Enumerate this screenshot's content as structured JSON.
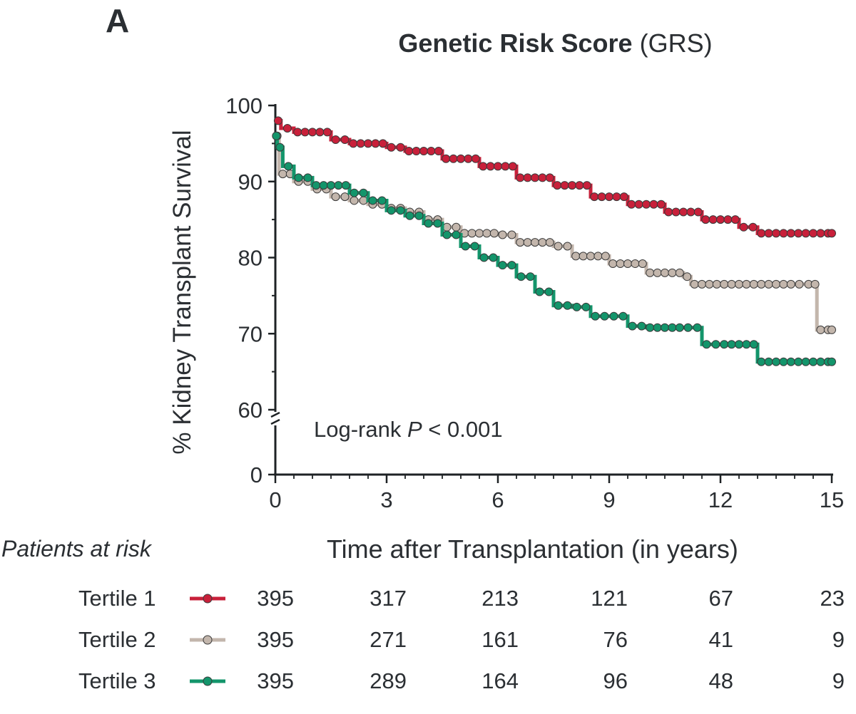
{
  "panel_letter": "A",
  "title": {
    "bold": "Genetic Risk Score",
    "normal": "(GRS)"
  },
  "logrank": {
    "prefix": "Log-rank ",
    "p": "P",
    "suffix": " < 0.001"
  },
  "risk_table": {
    "title": "Patients at risk",
    "rows": [
      {
        "label": "Tertile 1",
        "values": [
          "395",
          "317",
          "213",
          "121",
          "67",
          "23"
        ]
      },
      {
        "label": "Tertile 2",
        "values": [
          "395",
          "271",
          "161",
          "76",
          "41",
          "9"
        ]
      },
      {
        "label": "Tertile 3",
        "values": [
          "395",
          "289",
          "164",
          "96",
          "48",
          "9"
        ]
      }
    ]
  },
  "chart_data": {
    "type": "line",
    "subtype": "kaplan-meier step curves with censor markers",
    "title": "Genetic Risk Score (GRS)",
    "xlabel": "Time after Transplantation (in years)",
    "ylabel": "% Kidney Transplant Survival",
    "xlim": [
      0,
      15
    ],
    "x_ticks": [
      "0",
      "3",
      "6",
      "9",
      "12",
      "15"
    ],
    "y_ticks": [
      "0",
      "60",
      "70",
      "80",
      "90",
      "100"
    ],
    "y_axis_break": [
      0,
      60
    ],
    "grid": false,
    "series": [
      {
        "name": "Tertile 1",
        "color": "#c8203a",
        "x": [
          0,
          0.15,
          0.5,
          1.5,
          2,
          3,
          3.5,
          4.5,
          5.5,
          6.5,
          7.5,
          8.5,
          9.5,
          10.5,
          11.5,
          12.5,
          13,
          14,
          15
        ],
        "y": [
          98,
          97,
          96.5,
          95.5,
          95,
          94.5,
          94,
          93,
          92,
          90.5,
          89.5,
          88,
          87,
          86,
          85,
          84,
          83.2,
          83.2,
          83.2
        ]
      },
      {
        "name": "Tertile 2",
        "color": "#c3b6ac",
        "x": [
          0,
          0.1,
          0.5,
          1,
          1.5,
          2,
          2.5,
          3,
          3.5,
          4,
          4.5,
          5,
          6,
          6.5,
          7.5,
          8,
          9,
          10,
          11,
          11.2,
          12,
          13,
          14,
          14.5,
          14.6,
          15
        ],
        "y": [
          96,
          91,
          90,
          89,
          88,
          87.5,
          87,
          86.5,
          86,
          85,
          84,
          83.2,
          83,
          82,
          81.5,
          80.2,
          79.2,
          78,
          77.5,
          76.5,
          76.5,
          76.5,
          76.5,
          76.5,
          70.5,
          70.5
        ]
      },
      {
        "name": "Tertile 3",
        "color": "#13956b",
        "x": [
          0,
          0.05,
          0.2,
          0.5,
          1,
          2,
          2.5,
          3,
          3.5,
          4,
          4.5,
          5,
          5.5,
          6,
          6.5,
          7,
          7.5,
          8,
          8.5,
          9,
          9.5,
          10,
          11,
          11.5,
          12,
          13,
          14,
          15
        ],
        "y": [
          96,
          94.5,
          92,
          90.5,
          89.5,
          88.5,
          87.5,
          86.2,
          85.5,
          84.5,
          83,
          81.5,
          80,
          79,
          77.5,
          75.5,
          73.7,
          73.5,
          72.3,
          72.3,
          71,
          70.8,
          70.8,
          68.6,
          68.6,
          66.3,
          66.3,
          66.3
        ]
      }
    ]
  }
}
